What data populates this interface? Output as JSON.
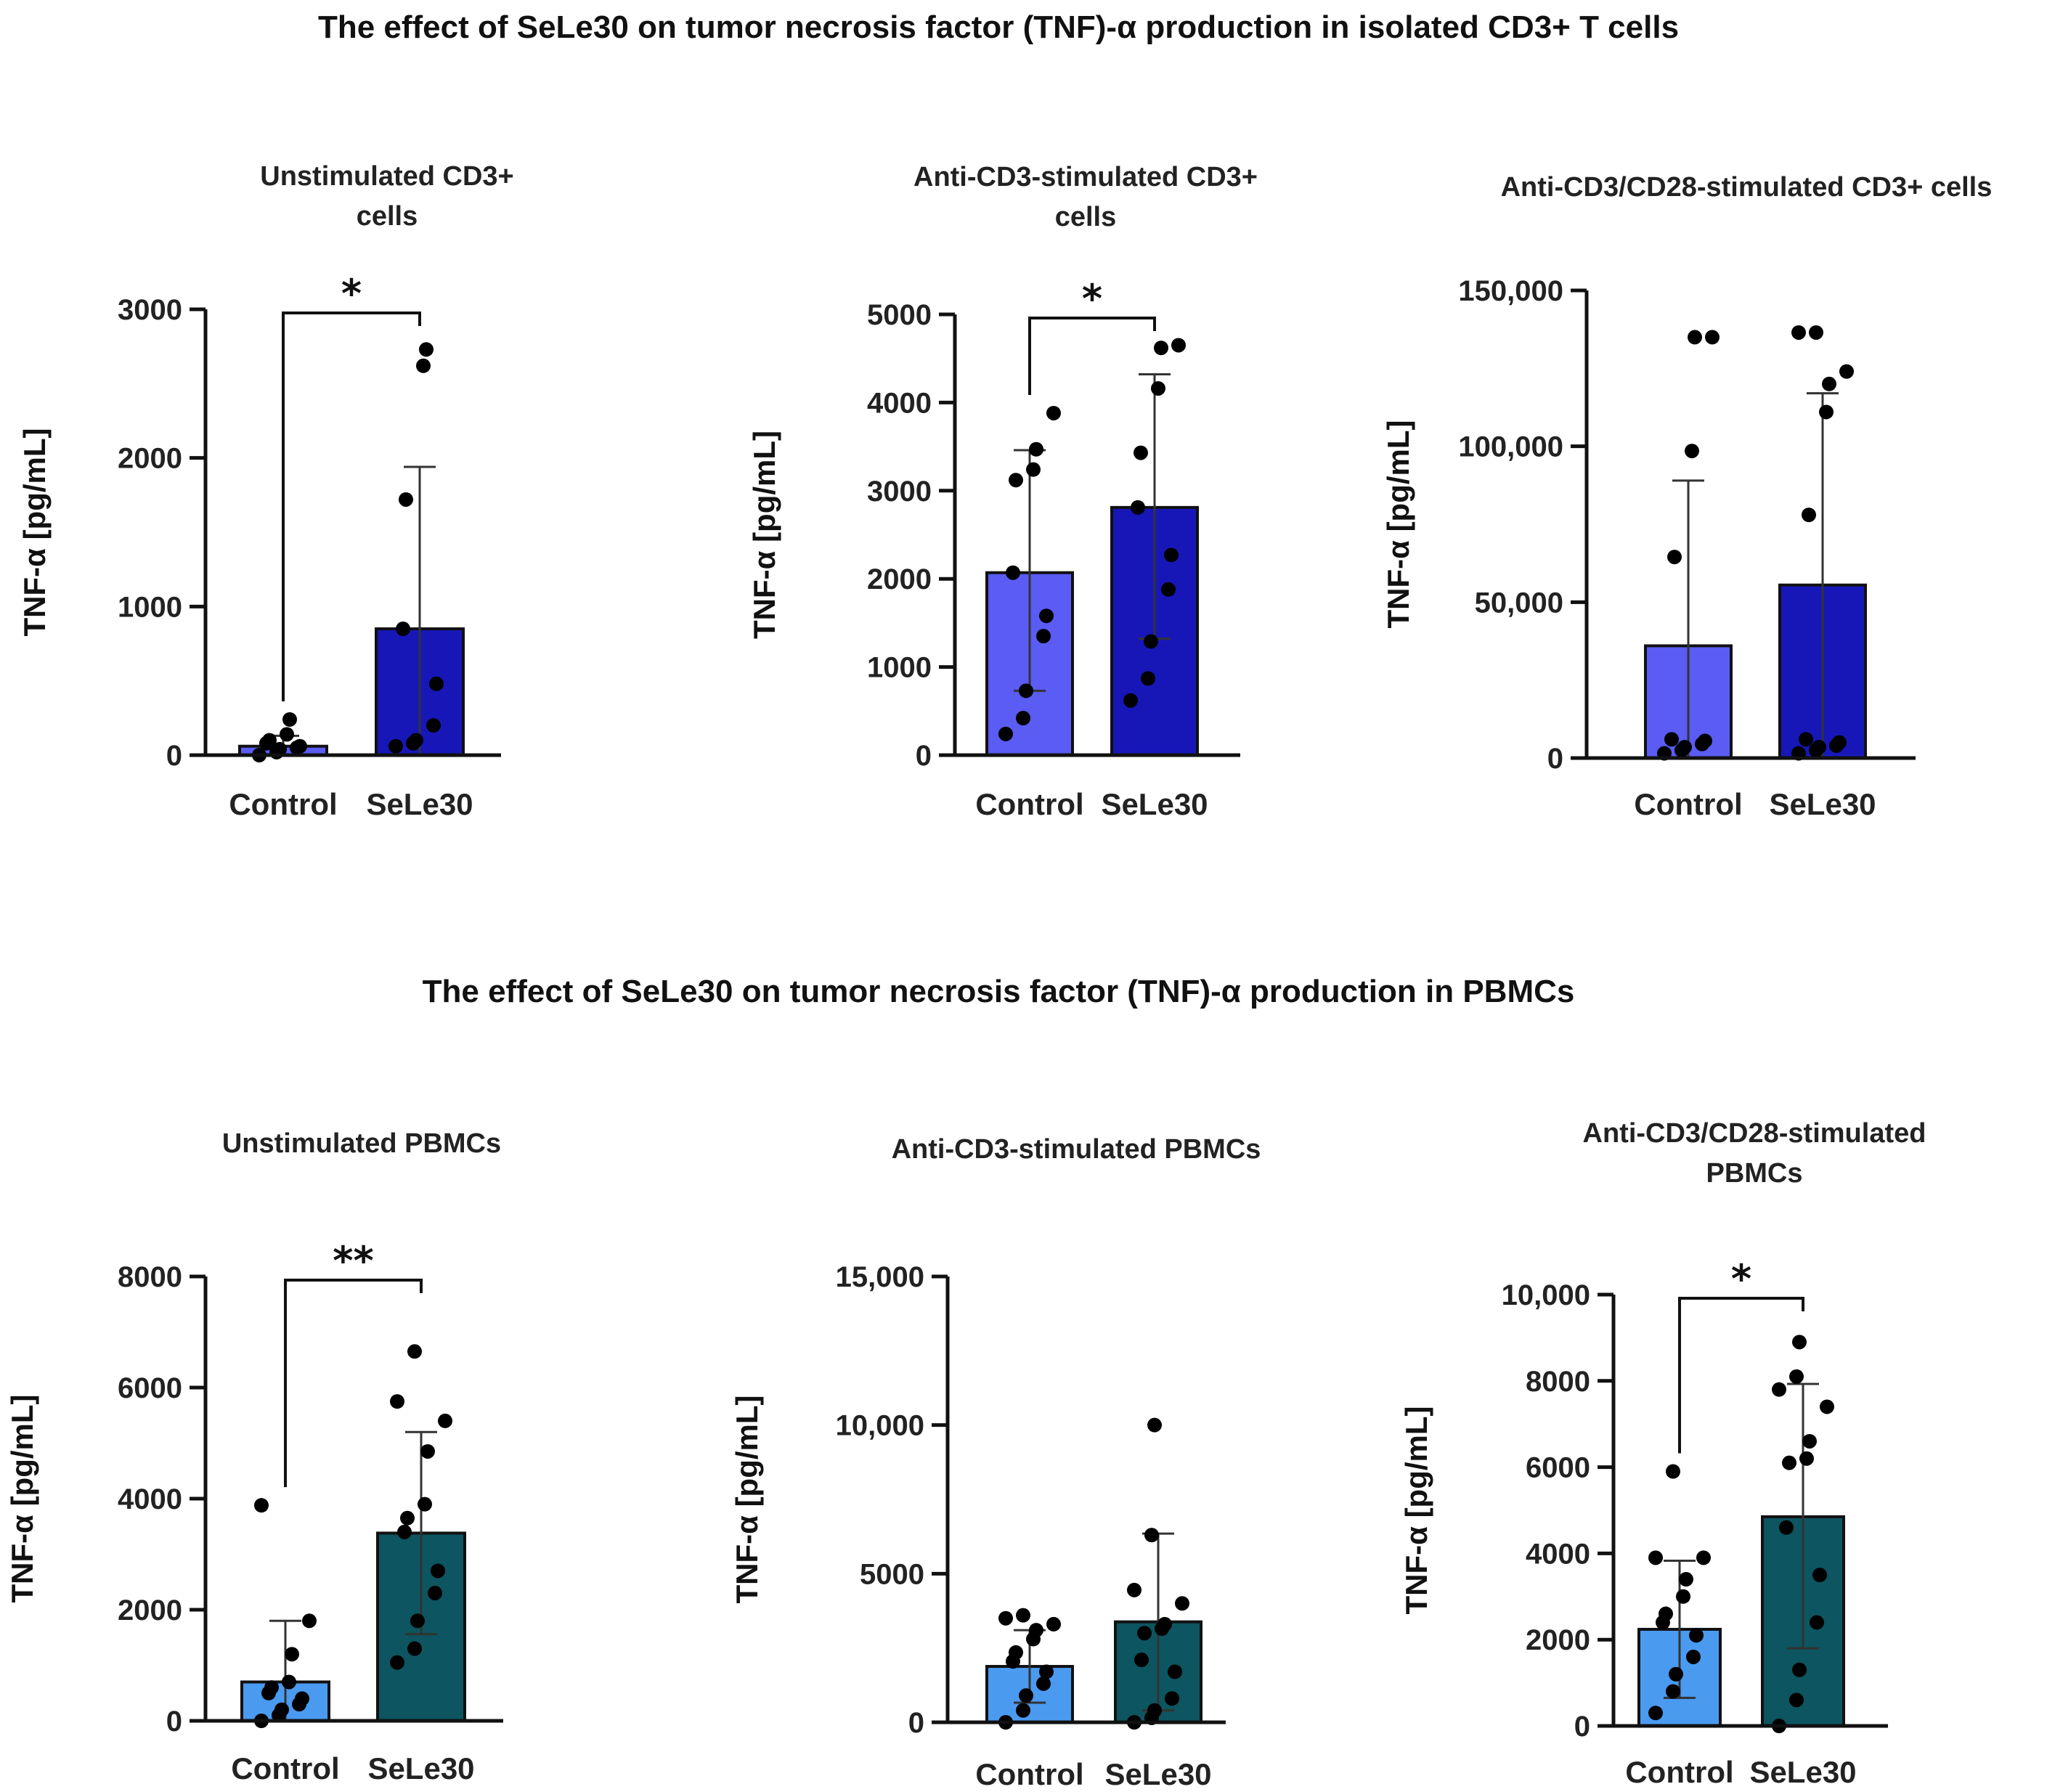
{
  "figure": {
    "section_titles": [
      "The effect of SeLe30 on tumor necrosis factor (TNF)-α production in isolated CD3+ T cells",
      "The effect of SeLe30 on tumor necrosis factor (TNF)-α production in PBMCs"
    ],
    "colors": {
      "cd3_control": "#5a5cf4",
      "cd3_sele30": "#1717b8",
      "pbmc_control": "#4a9af0",
      "pbmc_sele30": "#0d5560",
      "dot": "#000000"
    }
  },
  "chart_data": [
    {
      "type": "bar",
      "title_lines": [
        "Unstimulated CD3+",
        "cells"
      ],
      "ylabel": "TNF-α [pg/mL]",
      "categories": [
        "Control",
        "SeLe30"
      ],
      "values": [
        60,
        850
      ],
      "error_upper": [
        130,
        1940
      ],
      "error_lower": [
        0,
        0
      ],
      "points": [
        [
          0,
          20,
          40,
          50,
          60,
          80,
          100,
          140,
          240
        ],
        [
          60,
          80,
          100,
          200,
          480,
          850,
          1720,
          2620,
          2730
        ]
      ],
      "ylim": [
        0,
        3000
      ],
      "yticks": [
        0,
        1000,
        2000,
        3000
      ],
      "ytick_labels": [
        "0",
        "1000",
        "2000",
        "3000"
      ],
      "significance": "*",
      "group": "cd3"
    },
    {
      "type": "bar",
      "title_lines": [
        "Anti-CD3-stimulated CD3+",
        "cells"
      ],
      "ylabel": "TNF-α [pg/mL]",
      "categories": [
        "Control",
        "SeLe30"
      ],
      "values": [
        2070,
        2810
      ],
      "error_upper": [
        3460,
        4320
      ],
      "error_lower": [
        730,
        1320
      ],
      "points": [
        [
          240,
          420,
          730,
          1350,
          1580,
          2070,
          3120,
          3240,
          3470,
          3880
        ],
        [
          620,
          870,
          1290,
          1880,
          2270,
          2810,
          3430,
          4160,
          4620,
          4650
        ]
      ],
      "ylim": [
        0,
        5000
      ],
      "yticks": [
        0,
        1000,
        2000,
        3000,
        4000,
        5000
      ],
      "ytick_labels": [
        "0",
        "1000",
        "2000",
        "3000",
        "4000",
        "5000"
      ],
      "significance": "*",
      "group": "cd3"
    },
    {
      "type": "bar",
      "title_lines": [
        "Anti-CD3/CD28-stimulated CD3+ cells"
      ],
      "ylabel": "TNF-α [pg/mL]",
      "categories": [
        "Control",
        "SeLe30"
      ],
      "values": [
        36000,
        55500
      ],
      "error_upper": [
        89000,
        117000
      ],
      "error_lower": [
        0,
        0
      ],
      "points": [
        [
          1500,
          2500,
          3500,
          4500,
          5500,
          6000,
          64500,
          98500,
          135000,
          135000
        ],
        [
          1500,
          2500,
          3500,
          4000,
          5000,
          6000,
          78000,
          111000,
          120000,
          124000,
          136500,
          136500
        ]
      ],
      "ylim": [
        0,
        150000
      ],
      "yticks": [
        0,
        50000,
        100000,
        150000
      ],
      "ytick_labels": [
        "0",
        "50,000",
        "100,000",
        "150,000"
      ],
      "significance": "",
      "group": "cd3"
    },
    {
      "type": "bar",
      "title_lines": [
        "Unstimulated PBMCs"
      ],
      "ylabel": "TNF-α [pg/mL]",
      "categories": [
        "Control",
        "SeLe30"
      ],
      "values": [
        700,
        3380
      ],
      "error_upper": [
        1800,
        5200
      ],
      "error_lower": [
        0,
        1560
      ],
      "points": [
        [
          0,
          100,
          200,
          300,
          400,
          500,
          600,
          700,
          1200,
          1800,
          3880
        ],
        [
          1050,
          1300,
          1800,
          2300,
          2700,
          3400,
          3650,
          3900,
          4850,
          5400,
          5750,
          6650
        ]
      ],
      "ylim": [
        0,
        8000
      ],
      "yticks": [
        0,
        2000,
        4000,
        6000,
        8000
      ],
      "ytick_labels": [
        "0",
        "2000",
        "4000",
        "6000",
        "8000"
      ],
      "significance": "**",
      "group": "pbmc"
    },
    {
      "type": "bar",
      "title_lines": [
        "Anti-CD3-stimulated PBMCs"
      ],
      "ylabel": "TNF-α [pg/mL]",
      "categories": [
        "Control",
        "SeLe30"
      ],
      "values": [
        1880,
        3380
      ],
      "error_upper": [
        3100,
        6350
      ],
      "error_lower": [
        660,
        400
      ],
      "points": [
        [
          0,
          400,
          900,
          1300,
          1700,
          2050,
          2350,
          2800,
          3100,
          3300,
          3500,
          3600
        ],
        [
          0,
          150,
          400,
          800,
          1700,
          2100,
          3000,
          3150,
          3300,
          4000,
          4450,
          6300,
          10000
        ]
      ],
      "ylim": [
        0,
        15000
      ],
      "yticks": [
        0,
        5000,
        10000,
        15000
      ],
      "ytick_labels": [
        "0",
        "5000",
        "10,000",
        "15,000"
      ],
      "significance": "",
      "group": "pbmc"
    },
    {
      "type": "bar",
      "title_lines": [
        "Anti-CD3/CD28-stimulated",
        "PBMCs"
      ],
      "ylabel": "TNF-α [pg/mL]",
      "categories": [
        "Control",
        "SeLe30"
      ],
      "values": [
        2240,
        4850
      ],
      "error_upper": [
        3830,
        7930
      ],
      "error_lower": [
        650,
        1800
      ],
      "points": [
        [
          300,
          800,
          1200,
          1600,
          2100,
          2400,
          2600,
          3000,
          3400,
          3900,
          3900,
          5900
        ],
        [
          0,
          600,
          1300,
          2400,
          3500,
          4600,
          6100,
          6200,
          6600,
          7400,
          7800,
          8100,
          8900
        ]
      ],
      "ylim": [
        0,
        10000
      ],
      "yticks": [
        0,
        2000,
        4000,
        6000,
        8000,
        10000
      ],
      "ytick_labels": [
        "0",
        "2000",
        "4000",
        "6000",
        "8000",
        "10,000"
      ],
      "significance": "*",
      "group": "pbmc"
    }
  ]
}
